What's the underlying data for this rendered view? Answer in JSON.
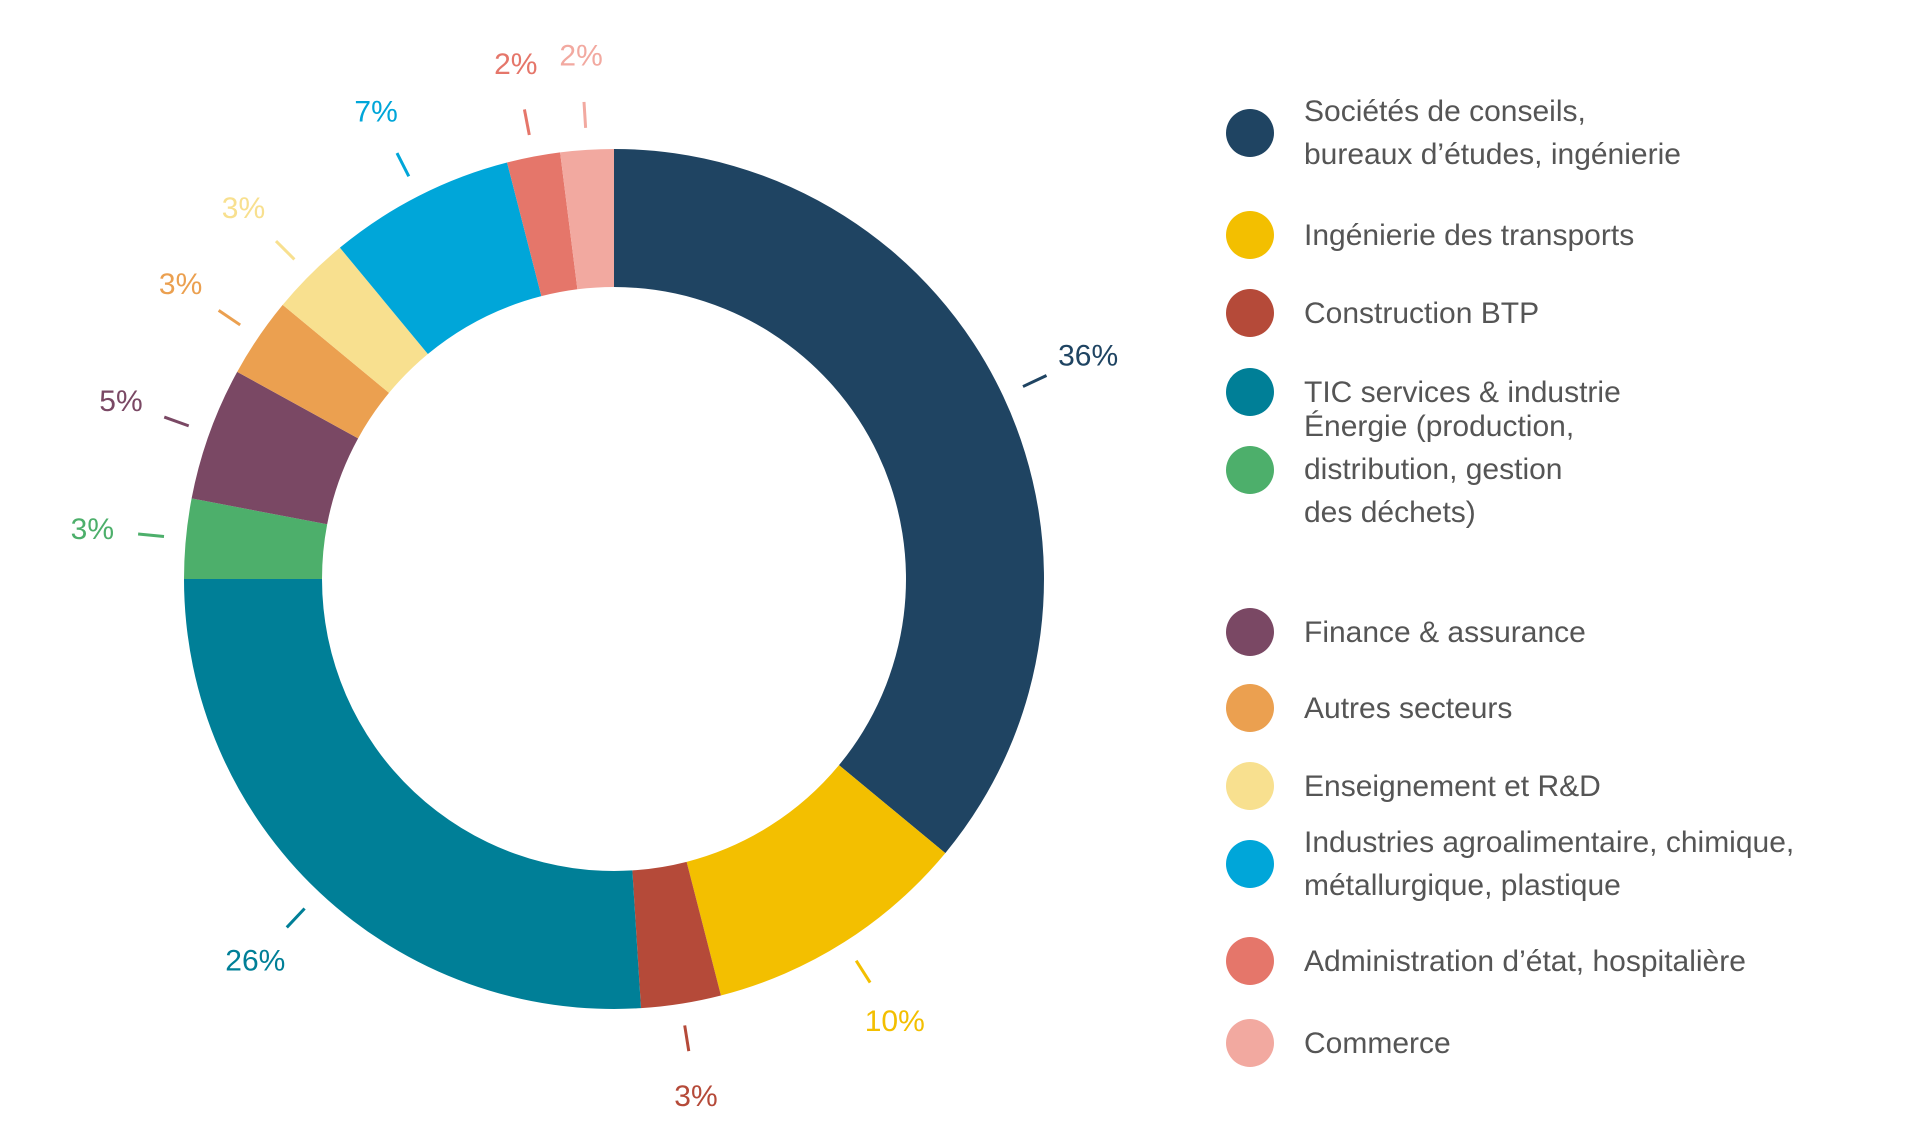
{
  "chart_data": {
    "type": "pie",
    "donut": true,
    "legend_position": "right",
    "slices": [
      {
        "label": "Sociétés de conseils,\nbureaux d’études, ingénierie",
        "value": 36,
        "value_label": "36%",
        "color": "#1f4462"
      },
      {
        "label": "Ingénierie des transports",
        "value": 10,
        "value_label": "10%",
        "color": "#f3bf00"
      },
      {
        "label": "Construction BTP",
        "value": 3,
        "value_label": "3%",
        "color": "#b54a39"
      },
      {
        "label": "TIC services & industrie",
        "value": 26,
        "value_label": "26%",
        "color": "#007f97"
      },
      {
        "label": "Énergie (production,\ndistribution, gestion\ndes déchets)",
        "value": 3,
        "value_label": "3%",
        "color": "#4daf6b"
      },
      {
        "label": "Finance & assurance",
        "value": 5,
        "value_label": "5%",
        "color": "#7a4864"
      },
      {
        "label": "Autres secteurs",
        "value": 3,
        "value_label": "3%",
        "color": "#eba050"
      },
      {
        "label": "Enseignement et R&D",
        "value": 3,
        "value_label": "3%",
        "color": "#f8e08f"
      },
      {
        "label": "Industries agroalimentaire, chimique,\nmétallurgique, plastique",
        "value": 7,
        "value_label": "7%",
        "color": "#00a6d9"
      },
      {
        "label": "Administration d’état, hospitalière",
        "value": 2,
        "value_label": "2%",
        "color": "#e5766a"
      },
      {
        "label": "Commerce",
        "value": 2,
        "value_label": "2%",
        "color": "#f2a9a0"
      }
    ]
  }
}
